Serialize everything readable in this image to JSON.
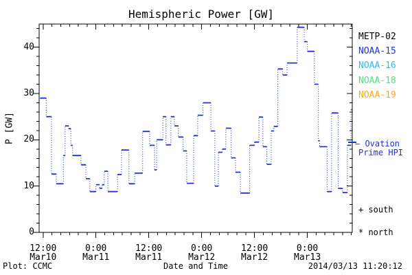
{
  "title": "Hemispheric Power [GW]",
  "axes": {
    "y_label": "P [GW]",
    "x_label": "Date and Time",
    "y_tick_labels": [
      "0",
      "10",
      "20",
      "30",
      "40"
    ],
    "x_tick_labels": [
      {
        "time": "12:00",
        "date": "Mar10"
      },
      {
        "time": "0:00",
        "date": "Mar11"
      },
      {
        "time": "12:00",
        "date": "Mar11"
      },
      {
        "time": "0:00",
        "date": "Mar12"
      },
      {
        "time": "12:00",
        "date": "Mar12"
      },
      {
        "time": "0:00",
        "date": "Mar13"
      }
    ]
  },
  "legend": {
    "satellites": [
      {
        "label": "METP-02",
        "color": "#000000"
      },
      {
        "label": "NOAA-15",
        "color": "#2233cc"
      },
      {
        "label": "NOAA-16",
        "color": "#33bbee"
      },
      {
        "label": "NOAA-18",
        "color": "#55dd88"
      },
      {
        "label": "NOAA-19",
        "color": "#ffaa22"
      }
    ],
    "ovation_line1": "– Ovation",
    "ovation_line2": "Prime HPI",
    "ovation_color": "#2233cc",
    "south_note": "+ south",
    "north_note": "* north"
  },
  "footer": {
    "left": "Plot: CCMC",
    "right": "2014/03/13 11:20:12"
  },
  "chart_data": {
    "type": "line",
    "subtype": "step",
    "title": "Hemispheric Power [GW]",
    "xlabel": "Date and Time",
    "ylabel": "P [GW]",
    "ylim": [
      0,
      45
    ],
    "y_major_ticks": [
      0,
      10,
      20,
      30,
      40
    ],
    "y_minor_step_gw": 2,
    "x_total_hours": 71.1,
    "x_minor_step_hours": 2,
    "x_major_ticks": [
      {
        "hours": 0.9,
        "time": "12:00",
        "date": "Mar10"
      },
      {
        "hours": 12.9,
        "time": "0:00",
        "date": "Mar11"
      },
      {
        "hours": 24.9,
        "time": "12:00",
        "date": "Mar11"
      },
      {
        "hours": 36.9,
        "time": "0:00",
        "date": "Mar12"
      },
      {
        "hours": 48.9,
        "time": "12:00",
        "date": "Mar12"
      },
      {
        "hours": 60.9,
        "time": "0:00",
        "date": "Mar13"
      }
    ],
    "legend_position": "right",
    "grid": false,
    "series": [
      {
        "name": "Ovation Prime HPI",
        "color": "#2233cc",
        "units": "GW",
        "steps_format": [
          "start_hour_from_Mar10_11:20",
          "end_hour",
          "power_gw"
        ],
        "steps": [
          [
            0.2,
            1.6,
            29.0
          ],
          [
            1.6,
            2.8,
            25.0
          ],
          [
            2.8,
            3.9,
            12.6
          ],
          [
            3.9,
            5.5,
            10.5
          ],
          [
            5.5,
            5.9,
            16.6
          ],
          [
            5.9,
            6.7,
            23.0
          ],
          [
            6.7,
            7.2,
            22.4
          ],
          [
            7.2,
            7.6,
            18.8
          ],
          [
            7.6,
            9.5,
            16.6
          ],
          [
            9.5,
            10.6,
            14.6
          ],
          [
            10.6,
            11.5,
            11.6
          ],
          [
            11.5,
            12.9,
            8.8
          ],
          [
            12.9,
            13.7,
            10.3
          ],
          [
            13.7,
            14.3,
            9.5
          ],
          [
            14.3,
            14.8,
            10.3
          ],
          [
            14.8,
            15.6,
            13.2
          ],
          [
            15.6,
            17.8,
            8.8
          ],
          [
            17.8,
            18.7,
            12.5
          ],
          [
            18.7,
            20.4,
            17.8
          ],
          [
            20.4,
            21.7,
            10.5
          ],
          [
            21.7,
            23.5,
            12.8
          ],
          [
            23.5,
            25.1,
            21.8
          ],
          [
            25.1,
            26.2,
            18.8
          ],
          [
            26.2,
            26.7,
            13.5
          ],
          [
            26.7,
            28.1,
            20.0
          ],
          [
            28.1,
            28.8,
            25.0
          ],
          [
            28.8,
            29.9,
            18.9
          ],
          [
            29.9,
            30.7,
            25.0
          ],
          [
            30.7,
            31.6,
            23.0
          ],
          [
            31.6,
            32.7,
            20.6
          ],
          [
            32.7,
            33.5,
            17.6
          ],
          [
            33.5,
            35.1,
            10.6
          ],
          [
            35.1,
            36.0,
            20.9
          ],
          [
            36.0,
            37.2,
            25.3
          ],
          [
            37.2,
            39.0,
            28.0
          ],
          [
            39.0,
            39.9,
            21.9
          ],
          [
            39.9,
            40.7,
            10.0
          ],
          [
            40.7,
            41.6,
            17.3
          ],
          [
            41.6,
            42.4,
            18.0
          ],
          [
            42.4,
            43.6,
            22.5
          ],
          [
            43.6,
            44.6,
            16.1
          ],
          [
            44.6,
            45.7,
            13.0
          ],
          [
            45.7,
            47.8,
            8.5
          ],
          [
            47.8,
            48.9,
            18.8
          ],
          [
            48.9,
            49.9,
            19.5
          ],
          [
            49.9,
            50.8,
            24.9
          ],
          [
            50.8,
            51.7,
            18.5
          ],
          [
            51.7,
            52.7,
            14.7
          ],
          [
            52.7,
            53.3,
            21.9
          ],
          [
            53.3,
            54.2,
            22.9
          ],
          [
            54.2,
            55.3,
            35.3
          ],
          [
            55.3,
            56.3,
            34.0
          ],
          [
            56.3,
            58.6,
            36.6
          ],
          [
            58.6,
            60.2,
            44.3
          ],
          [
            60.2,
            60.9,
            41.2
          ],
          [
            60.9,
            62.5,
            39.1
          ],
          [
            62.5,
            63.4,
            32.0
          ],
          [
            63.4,
            63.7,
            19.8
          ],
          [
            63.7,
            65.4,
            18.5
          ],
          [
            65.4,
            66.4,
            8.8
          ],
          [
            66.4,
            67.9,
            25.8
          ],
          [
            67.9,
            68.9,
            9.5
          ],
          [
            68.9,
            70.0,
            8.6
          ],
          [
            70.0,
            70.8,
            18.8
          ],
          [
            70.8,
            71.1,
            26.5
          ]
        ]
      }
    ]
  }
}
